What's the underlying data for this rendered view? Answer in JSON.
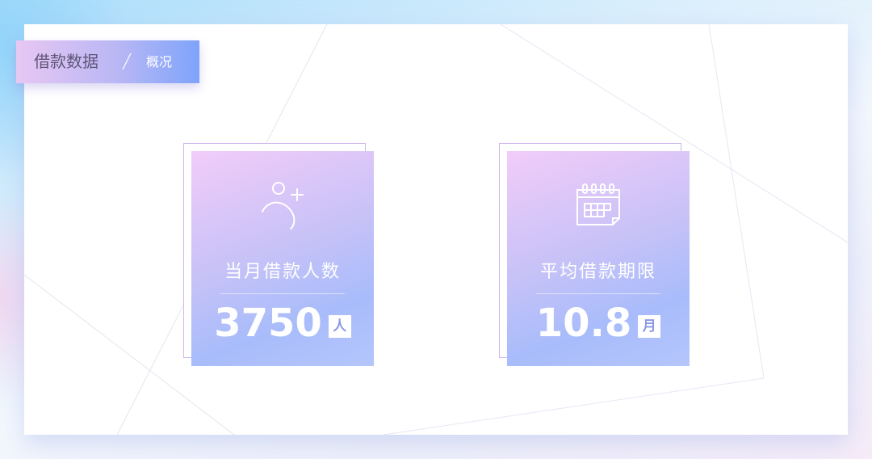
{
  "header": {
    "title": "借款数据",
    "subtitle": "概况"
  },
  "icons": {
    "user_add": "user-add-icon",
    "calendar": "calendar-icon"
  },
  "colors": {
    "card_gradient_start": "#f2ccf9",
    "card_gradient_end": "#a8bcfb",
    "tag_gradient_start": "#e8c7f3",
    "tag_gradient_end": "#7ea4fb",
    "title_text": "#5f5578",
    "outline": "#cdb8ee"
  },
  "stats": [
    {
      "label": "当月借款人数",
      "value": "3750",
      "unit": "人",
      "icon": "user-add-icon"
    },
    {
      "label": "平均借款期限",
      "value": "10.8",
      "unit": "月",
      "icon": "calendar-icon"
    }
  ]
}
